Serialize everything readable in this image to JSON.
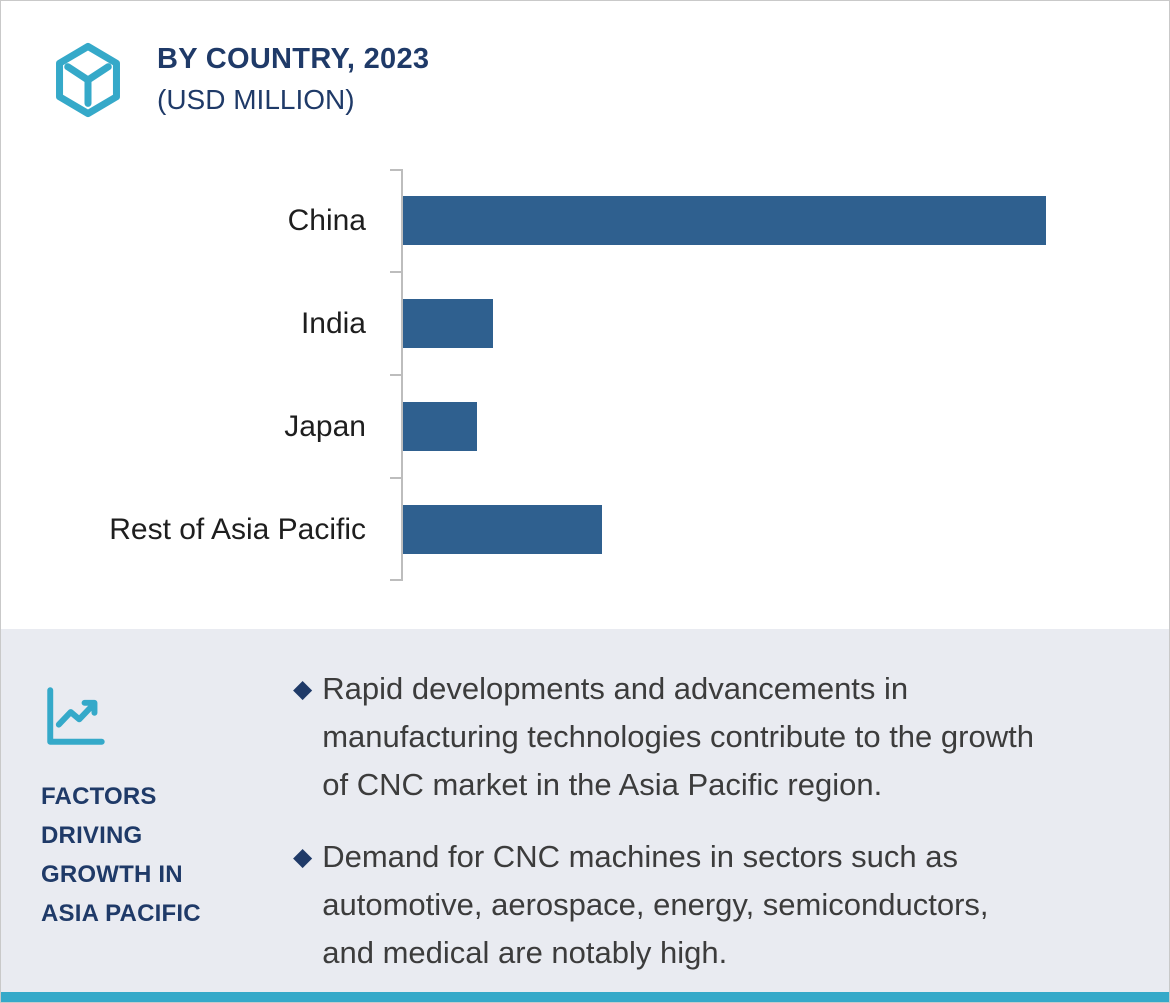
{
  "colors": {
    "navy": "#1F3A68",
    "teal": "#35A9C9",
    "bar_blue": "#2F608F",
    "panel_bg": "#E9EBF1",
    "text_dark": "#3C3C3C"
  },
  "header": {
    "title_line1": "BY COUNTRY, 2023",
    "title_line2": "(USD MILLION)"
  },
  "chart_data": {
    "type": "bar",
    "orientation": "horizontal",
    "title": "BY COUNTRY, 2023 (USD MILLION)",
    "categories": [
      "China",
      "India",
      "Japan",
      "Rest of Asia Pacific"
    ],
    "values": [
      100,
      14,
      11.5,
      31
    ],
    "value_scale": "relative, China = 100 (no numeric axis tick labels shown)",
    "unit": "USD Million",
    "bar_color": "#2F608F",
    "grid": false,
    "legend": false
  },
  "factors": {
    "heading_lines": [
      "FACTORS",
      "DRIVING",
      "GROWTH IN",
      "ASIA PACIFIC"
    ],
    "bullet_marker": "◆",
    "bullets": [
      "Rapid developments and advancements in manufacturing technologies contribute to the growth of CNC market in the Asia Pacific region.",
      "Demand for CNC machines in sectors such as automotive, aerospace, energy, semiconductors, and medical are notably high."
    ]
  },
  "icons": {
    "logo": "hexagon-cube-icon",
    "factors": "line-chart-icon",
    "bullet": "diamond-bullet-icon"
  }
}
